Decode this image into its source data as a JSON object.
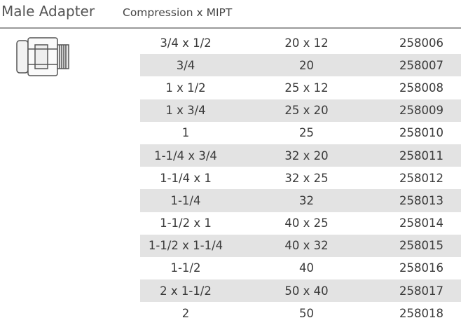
{
  "header": {
    "title": "Male Adapter",
    "subtitle": "Compression x MIPT"
  },
  "table": {
    "rows": [
      [
        "3/4 x 1/2",
        "20 x 12",
        "258006"
      ],
      [
        "3/4",
        "20",
        "258007"
      ],
      [
        "1 x 1/2",
        "25 x 12",
        "258008"
      ],
      [
        "1 x 3/4",
        "25 x 20",
        "258009"
      ],
      [
        "1",
        "25",
        "258010"
      ],
      [
        "1-1/4 x 3/4",
        "32 x 20",
        "258011"
      ],
      [
        "1-1/4 x 1",
        "32 x 25",
        "258012"
      ],
      [
        "1-1/4",
        "32",
        "258013"
      ],
      [
        "1-1/2 x 1",
        "40 x 25",
        "258014"
      ],
      [
        "1-1/2 x 1-1/4",
        "40 x 32",
        "258015"
      ],
      [
        "1-1/2",
        "40",
        "258016"
      ],
      [
        "2 x 1-1/2",
        "50 x 40",
        "258017"
      ],
      [
        "2",
        "50",
        "258018"
      ]
    ]
  }
}
